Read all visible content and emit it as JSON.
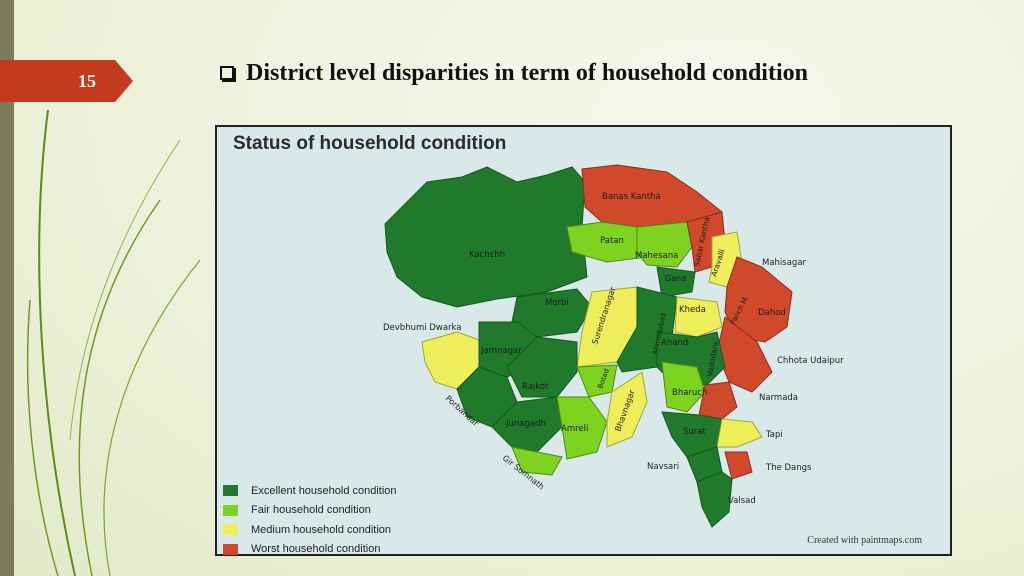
{
  "slide": {
    "number": "15",
    "title": "District level disparities in term of household condition"
  },
  "map": {
    "title": "Status of household condition",
    "credit": "Created with paintmaps.com",
    "colors": {
      "excellent": "#1f7a2b",
      "fair": "#7ed321",
      "medium": "#eeee5a",
      "worst": "#d1492b",
      "sea": "#d9e9ea",
      "accent": "#c43a1c"
    },
    "legend": [
      {
        "label": "Excellent household condition",
        "color": "#1f7a2b"
      },
      {
        "label": "Fair household condition",
        "color": "#7ed321"
      },
      {
        "label": "Medium household condition",
        "color": "#eeee5a"
      },
      {
        "label": "Worst household condition",
        "color": "#d1492b"
      }
    ],
    "districts": [
      {
        "name": "Banas Kantha",
        "status": "worst"
      },
      {
        "name": "Kachchh",
        "status": "excellent"
      },
      {
        "name": "Patan",
        "status": "fair"
      },
      {
        "name": "Mahesana",
        "status": "fair"
      },
      {
        "name": "Sabar Kantha",
        "status": "worst"
      },
      {
        "name": "Aravalli",
        "status": "medium"
      },
      {
        "name": "Mahisagar",
        "status": "worst"
      },
      {
        "name": "Gand",
        "status": "excellent"
      },
      {
        "name": "Morbi",
        "status": "excellent"
      },
      {
        "name": "Surendranagar",
        "status": "medium"
      },
      {
        "name": "Ahmedabad",
        "status": "excellent"
      },
      {
        "name": "Kheda",
        "status": "medium"
      },
      {
        "name": "Panch M.",
        "status": "worst"
      },
      {
        "name": "Dahod",
        "status": "worst"
      },
      {
        "name": "Devbhumi Dwarka",
        "status": "medium"
      },
      {
        "name": "Jamnagar",
        "status": "excellent"
      },
      {
        "name": "Anand",
        "status": "excellent"
      },
      {
        "name": "Vadodara",
        "status": "excellent"
      },
      {
        "name": "Chhota Udaipur",
        "status": "worst"
      },
      {
        "name": "Rajkot",
        "status": "excellent"
      },
      {
        "name": "Botad",
        "status": "fair"
      },
      {
        "name": "Bhavnagar",
        "status": "medium"
      },
      {
        "name": "Bharuch",
        "status": "fair"
      },
      {
        "name": "Narmada",
        "status": "worst"
      },
      {
        "name": "Porbandar",
        "status": "excellent"
      },
      {
        "name": "Junagadh",
        "status": "excellent"
      },
      {
        "name": "Amreli",
        "status": "fair"
      },
      {
        "name": "Surat",
        "status": "excellent"
      },
      {
        "name": "Tapi",
        "status": "medium"
      },
      {
        "name": "Gir Somnath",
        "status": "fair"
      },
      {
        "name": "Navsari",
        "status": "excellent"
      },
      {
        "name": "The Dangs",
        "status": "worst"
      },
      {
        "name": "Valsad",
        "status": "excellent"
      }
    ]
  }
}
